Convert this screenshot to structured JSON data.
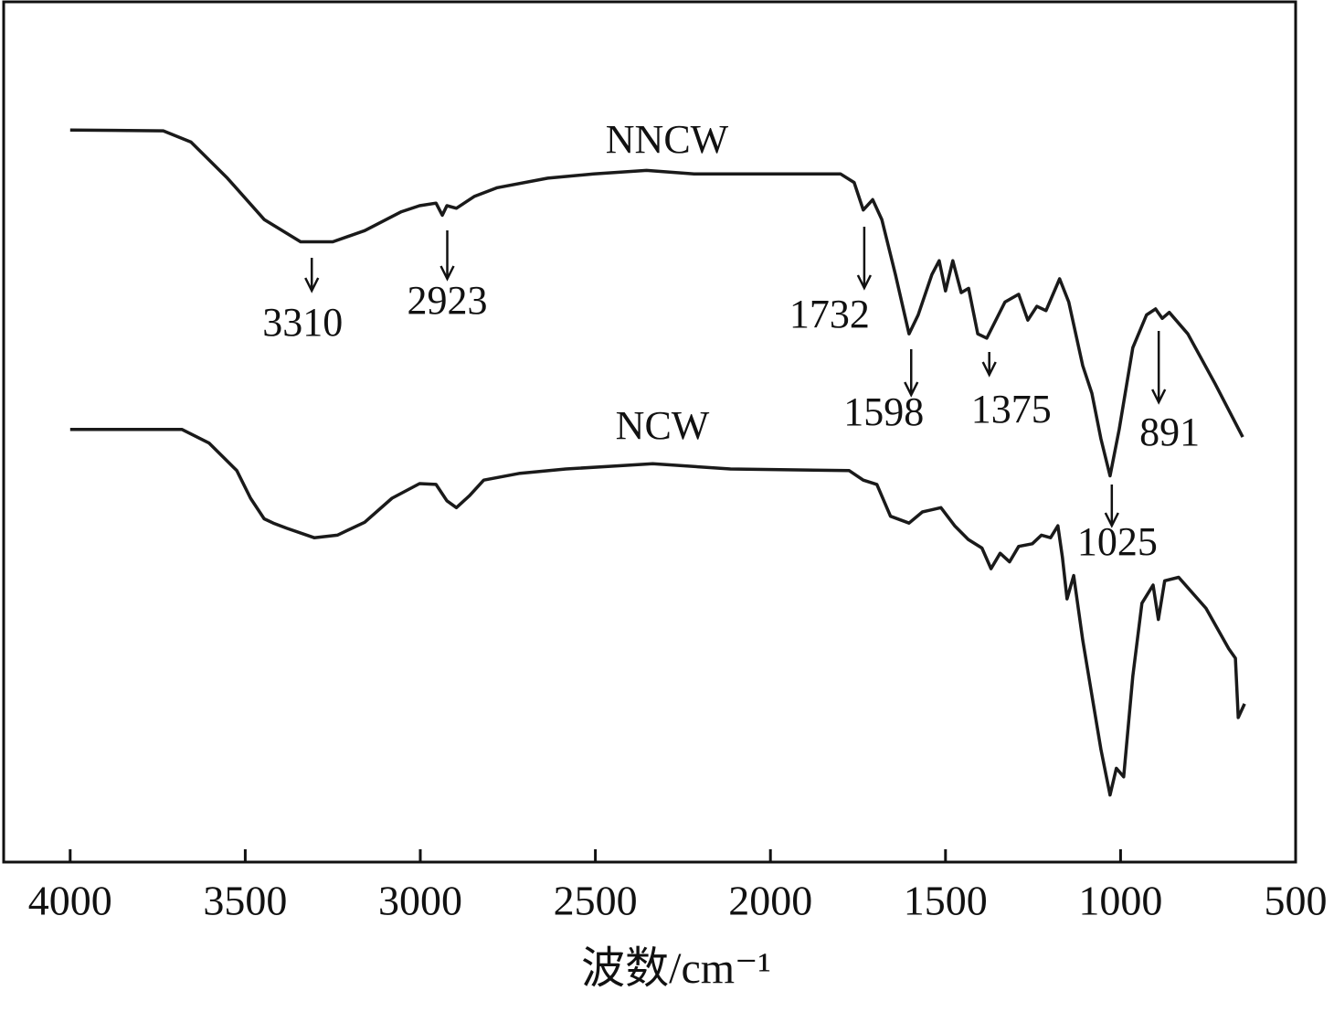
{
  "chart_data": {
    "type": "line",
    "x_label": "波数/cm⁻¹",
    "xlim": [
      4190,
      500
    ],
    "xticks": [
      4000,
      3500,
      3000,
      2500,
      2000,
      1500,
      1000,
      500
    ],
    "ylim": [
      0,
      100
    ],
    "series": [
      {
        "name": "NNCW",
        "color": "#1a1a1a",
        "x": [
          4000,
          3734,
          3655,
          3551,
          3446,
          3342,
          3250,
          3159,
          3054,
          3002,
          2955,
          2937,
          2924,
          2897,
          2845,
          2780,
          2636,
          2505,
          2354,
          2218,
          1983,
          1800,
          1761,
          1735,
          1708,
          1682,
          1643,
          1604,
          1578,
          1539,
          1518,
          1500,
          1479,
          1455,
          1434,
          1408,
          1382,
          1330,
          1291,
          1265,
          1239,
          1213,
          1174,
          1148,
          1108,
          1082,
          1056,
          1030,
          1004,
          965,
          926,
          900,
          881,
          861,
          808,
          730,
          651
        ],
        "values": [
          85.1,
          85.0,
          83.7,
          79.5,
          74.7,
          72.1,
          72.1,
          73.4,
          75.6,
          76.3,
          76.6,
          75.2,
          76.3,
          76.0,
          77.4,
          78.4,
          79.5,
          80.0,
          80.4,
          80.0,
          80.0,
          80.0,
          79.0,
          75.8,
          77.0,
          74.7,
          68.3,
          61.4,
          63.6,
          68.3,
          69.9,
          66.4,
          69.9,
          66.2,
          66.7,
          61.4,
          60.9,
          65.1,
          66.0,
          63.0,
          64.6,
          64.1,
          67.8,
          65.1,
          57.7,
          54.5,
          49.2,
          44.9,
          50.3,
          59.8,
          63.6,
          64.3,
          63.2,
          63.9,
          61.4,
          55.6,
          49.4
        ]
      },
      {
        "name": "NCW",
        "color": "#1a1a1a",
        "x": [
          4000,
          3681,
          3603,
          3524,
          3485,
          3446,
          3420,
          3381,
          3303,
          3237,
          3159,
          3081,
          3002,
          2955,
          2924,
          2897,
          2859,
          2819,
          2715,
          2584,
          2336,
          2114,
          1775,
          1735,
          1696,
          1657,
          1604,
          1566,
          1513,
          1474,
          1435,
          1396,
          1370,
          1344,
          1317,
          1291,
          1252,
          1226,
          1200,
          1179,
          1166,
          1153,
          1134,
          1108,
          1082,
          1056,
          1030,
          1012,
          991,
          965,
          939,
          907,
          892,
          874,
          834,
          756,
          691,
          672,
          664,
          646
        ],
        "values": [
          50.3,
          50.3,
          48.7,
          45.5,
          42.3,
          39.9,
          39.4,
          38.8,
          37.7,
          38.0,
          39.5,
          42.3,
          44.0,
          43.9,
          42.0,
          41.2,
          42.6,
          44.4,
          45.2,
          45.7,
          46.3,
          45.7,
          45.5,
          44.4,
          43.9,
          40.2,
          39.4,
          40.7,
          41.2,
          39.1,
          37.5,
          36.5,
          34.1,
          35.9,
          34.9,
          36.7,
          37.0,
          38.0,
          37.7,
          39.1,
          35.4,
          30.6,
          33.3,
          25.8,
          19.4,
          13.1,
          7.8,
          10.9,
          9.9,
          21.6,
          30.1,
          32.2,
          28.2,
          32.7,
          33.1,
          29.5,
          24.8,
          23.7,
          16.8,
          18.4
        ]
      }
    ],
    "peak_labels": [
      3310,
      2923,
      1732,
      1598,
      1375,
      891,
      1025
    ]
  }
}
